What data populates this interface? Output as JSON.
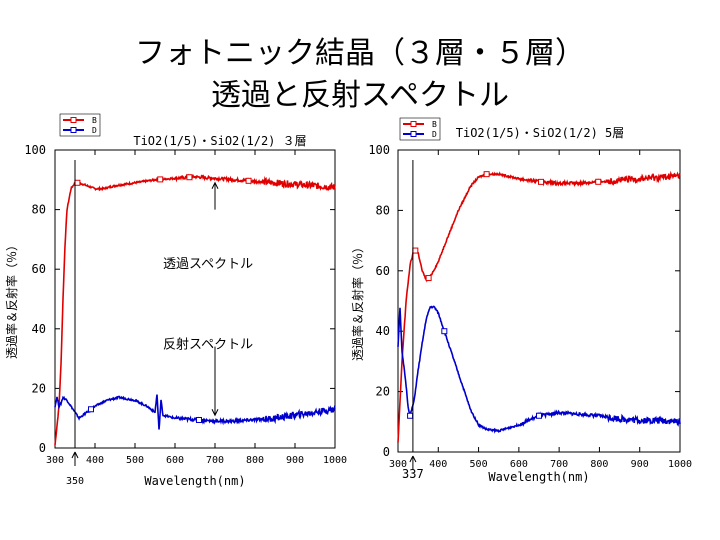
{
  "slide": {
    "title_line1": "フォトニック結晶（３層・５層）",
    "title_line2": "透過と反射スペクトル"
  },
  "colors": {
    "transmission": "#e00000",
    "reflection": "#0000cc",
    "marker_line": "#000000"
  },
  "chart_data": [
    {
      "type": "line",
      "title": "TiO2(1/5)・SiO2(1/2) ３層",
      "xlabel": "Wavelength(nm)",
      "ylabel": "透過率＆反射率（％）",
      "xlim": [
        300,
        1000
      ],
      "ylim": [
        0,
        100
      ],
      "xticks": [
        300,
        400,
        500,
        600,
        700,
        800,
        900,
        1000
      ],
      "yticks": [
        0,
        20,
        40,
        60,
        80,
        100
      ],
      "legend": [
        "B",
        "D"
      ],
      "legend_position": "top-left",
      "marker_x": 350,
      "marker_label": "350",
      "annotations": [
        {
          "text": "透過スペクトル",
          "x": 700,
          "y": 62
        },
        {
          "text": "反射スペクトル",
          "x": 700,
          "y": 35
        }
      ],
      "series": [
        {
          "name": "B",
          "color": "#e00000",
          "x": [
            300,
            310,
            315,
            320,
            325,
            330,
            340,
            350,
            360,
            380,
            400,
            420,
            450,
            500,
            550,
            600,
            650,
            700,
            750,
            800,
            850,
            900,
            950,
            1000
          ],
          "y": [
            1,
            14,
            28,
            50,
            68,
            80,
            87,
            89,
            89,
            88,
            87,
            87,
            88,
            89,
            90,
            90.5,
            91,
            90.5,
            90,
            89.5,
            89,
            88.5,
            88,
            87.5
          ],
          "markers_x": [
            356,
            563,
            636,
            784
          ]
        },
        {
          "name": "D",
          "color": "#0000cc",
          "x": [
            300,
            305,
            310,
            315,
            320,
            330,
            340,
            350,
            360,
            370,
            380,
            400,
            430,
            460,
            500,
            530,
            550,
            555,
            560,
            565,
            570,
            600,
            650,
            700,
            750,
            800,
            850,
            900,
            950,
            1000
          ],
          "y": [
            14,
            17,
            14,
            15,
            17,
            16,
            14,
            12,
            10,
            11,
            12,
            14,
            16,
            17,
            16,
            14,
            12,
            18,
            6,
            16,
            11,
            10,
            9.5,
            9,
            9,
            9.5,
            10,
            11,
            12,
            13
          ],
          "markers_x": [
            390,
            660
          ]
        }
      ]
    },
    {
      "type": "line",
      "title": "TiO2(1/5)・SiO2(1/2) 5層",
      "xlabel": "Wavelength(nm)",
      "ylabel": "透過率＆反射率（％）",
      "xlim": [
        300,
        1000
      ],
      "ylim": [
        0,
        100
      ],
      "xticks": [
        300,
        400,
        500,
        600,
        700,
        800,
        900,
        1000
      ],
      "yticks": [
        0,
        20,
        40,
        60,
        80,
        100
      ],
      "legend": [
        "B",
        "D"
      ],
      "legend_position": "top-left",
      "marker_x": 337,
      "marker_label": "337",
      "series": [
        {
          "name": "B",
          "color": "#e00000",
          "x": [
            300,
            310,
            320,
            330,
            340,
            350,
            360,
            370,
            380,
            400,
            420,
            450,
            480,
            500,
            520,
            550,
            600,
            650,
            700,
            750,
            800,
            850,
            900,
            950,
            1000
          ],
          "y": [
            3,
            30,
            50,
            62,
            67,
            66,
            60,
            57,
            58,
            63,
            70,
            80,
            88,
            91,
            92,
            92,
            90.5,
            89.5,
            89,
            89,
            89.5,
            90,
            90.5,
            91,
            91.5
          ],
          "markers_x": [
            343,
            376,
            520,
            655,
            797
          ]
        },
        {
          "name": "D",
          "color": "#0000cc",
          "x": [
            300,
            305,
            310,
            315,
            320,
            325,
            330,
            340,
            350,
            360,
            370,
            380,
            390,
            400,
            420,
            450,
            480,
            500,
            520,
            550,
            600,
            650,
            700,
            750,
            800,
            850,
            900,
            950,
            1000
          ],
          "y": [
            35,
            48,
            33,
            28,
            22,
            15,
            12,
            17,
            27,
            36,
            44,
            48,
            48,
            46,
            38,
            26,
            14,
            9,
            7.5,
            7,
            9,
            12,
            13,
            12.5,
            12,
            11,
            10.5,
            10.5,
            10
          ],
          "markers_x": [
            330,
            415,
            650
          ]
        }
      ]
    }
  ]
}
